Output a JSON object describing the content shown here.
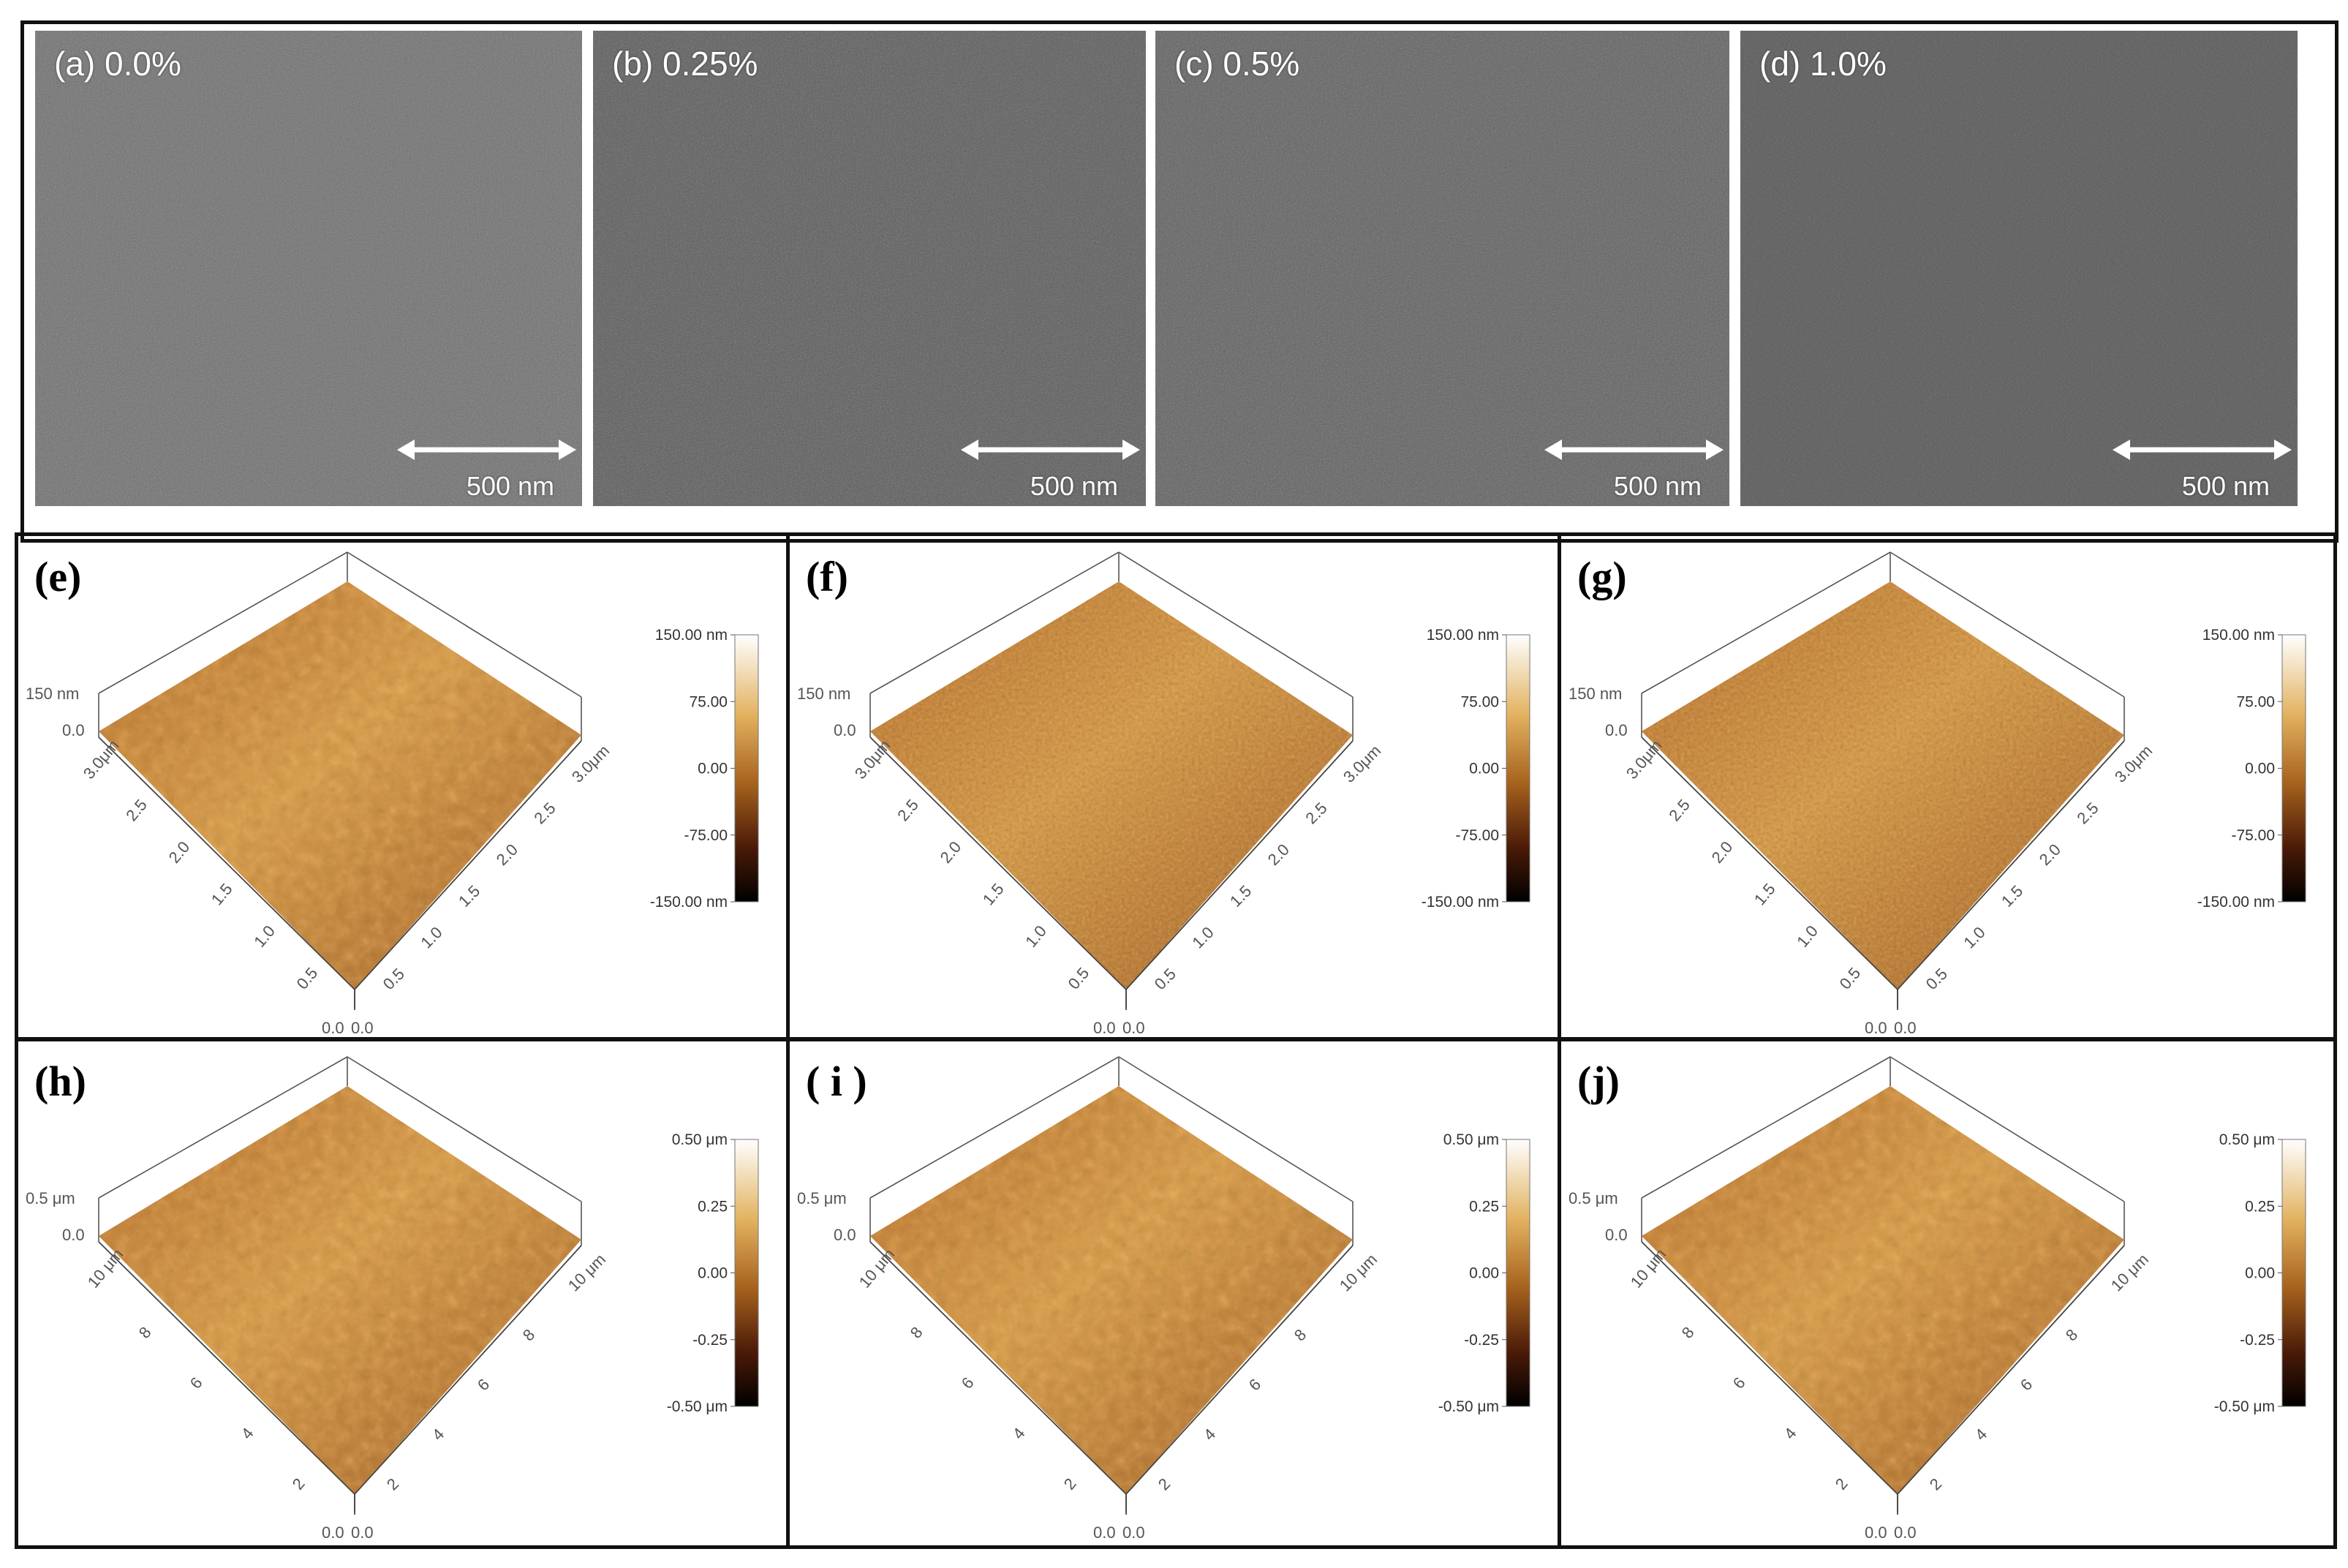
{
  "sem_panels": [
    {
      "label": "(a) 0.0%",
      "scale": "500 nm"
    },
    {
      "label": "(b) 0.25%",
      "scale": "500 nm"
    },
    {
      "label": "(c) 0.5%",
      "scale": "500 nm"
    },
    {
      "label": "(d) 1.0%",
      "scale": "500 nm"
    }
  ],
  "afm_small": {
    "panel_labels": [
      "(e)",
      "(f)",
      "(g)"
    ],
    "z_label": [
      "150 nm",
      "150 nm",
      "150 nm"
    ],
    "z_zero": "0.0",
    "left_axis_ticks": [
      "3.0μm",
      "2.5",
      "2.0",
      "1.5",
      "1.0",
      "0.5"
    ],
    "right_axis_ticks": [
      "3.0μm",
      "2.5",
      "2.0",
      "1.5",
      "1.0",
      "0.5"
    ],
    "origin_ticks": [
      "0.0",
      "0.0"
    ],
    "colorbar": [
      [
        "150.00 nm",
        "75.00",
        "0.00",
        "-75.00",
        "-150.00 nm"
      ],
      [
        "150.00 nm",
        "75.00",
        "0.00",
        "-75.00",
        "-150.00 nm"
      ],
      [
        "150.00 nm",
        "75.00",
        "0.00",
        "-75.00",
        "-150.00 nm"
      ]
    ]
  },
  "afm_large": {
    "panel_labels": [
      "(h)",
      "( i )",
      "(j)"
    ],
    "z_label": [
      "0.5 μm",
      "0.5 μm",
      "0.5 μm"
    ],
    "z_zero": "0.0",
    "left_axis_ticks": [
      "10 μm",
      "8",
      "6",
      "4",
      "2"
    ],
    "right_axis_ticks": [
      "10 μm",
      "8",
      "6",
      "4",
      "2"
    ],
    "origin_ticks": [
      "0.0",
      "0.0"
    ],
    "colorbar": [
      [
        "0.50 μm",
        "0.25",
        "0.00",
        "-0.25",
        "-0.50 μm"
      ],
      [
        "0.50 μm",
        "0.25",
        "0.00",
        "-0.25",
        "-0.50 μm"
      ],
      [
        "0.50 μm",
        "0.25",
        "0.00",
        "-0.25",
        "-0.50 μm"
      ]
    ]
  },
  "colors": {
    "frame": "#111111",
    "sem_gray": "#6f6f6f",
    "afm_surface_light": "#c98c3e",
    "afm_surface_dark": "#8a4a1f",
    "colorbar_top": "#ffffff",
    "colorbar_mid": "#a8641e",
    "colorbar_bottom": "#000000"
  }
}
